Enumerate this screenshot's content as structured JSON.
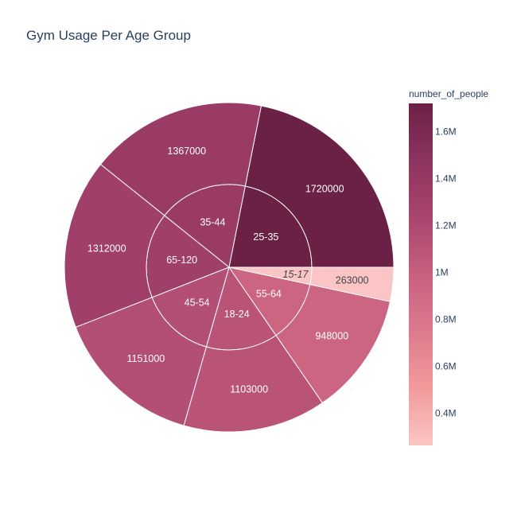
{
  "chart_data": {
    "type": "sunburst",
    "title": "Gym Usage Per Age Group",
    "colorbar": {
      "title": "number_of_people",
      "min": 263000,
      "max": 1720000,
      "ticks": [
        {
          "value": 400000,
          "label": "0.4M"
        },
        {
          "value": 600000,
          "label": "0.6M"
        },
        {
          "value": 800000,
          "label": "0.8M"
        },
        {
          "value": 1000000,
          "label": "1M"
        },
        {
          "value": 1200000,
          "label": "1.2M"
        },
        {
          "value": 1400000,
          "label": "1.4M"
        },
        {
          "value": 1600000,
          "label": "1.6M"
        }
      ],
      "colors": [
        "#fbc5c5",
        "#f19b9b",
        "#dd7a8e",
        "#c7607f",
        "#a9456e",
        "#8d3360",
        "#6b2045"
      ]
    },
    "segments": [
      {
        "category": "25-35",
        "value": 1720000,
        "label": "1720000"
      },
      {
        "category": "35-44",
        "value": 1367000,
        "label": "1367000"
      },
      {
        "category": "65-120",
        "value": 1312000,
        "label": "1312000"
      },
      {
        "category": "45-54",
        "value": 1151000,
        "label": "1151000"
      },
      {
        "category": "18-24",
        "value": 1103000,
        "label": "1103000"
      },
      {
        "category": "55-64",
        "value": 948000,
        "label": "948000"
      },
      {
        "category": "15-17",
        "value": 263000,
        "label": "263000"
      }
    ]
  }
}
